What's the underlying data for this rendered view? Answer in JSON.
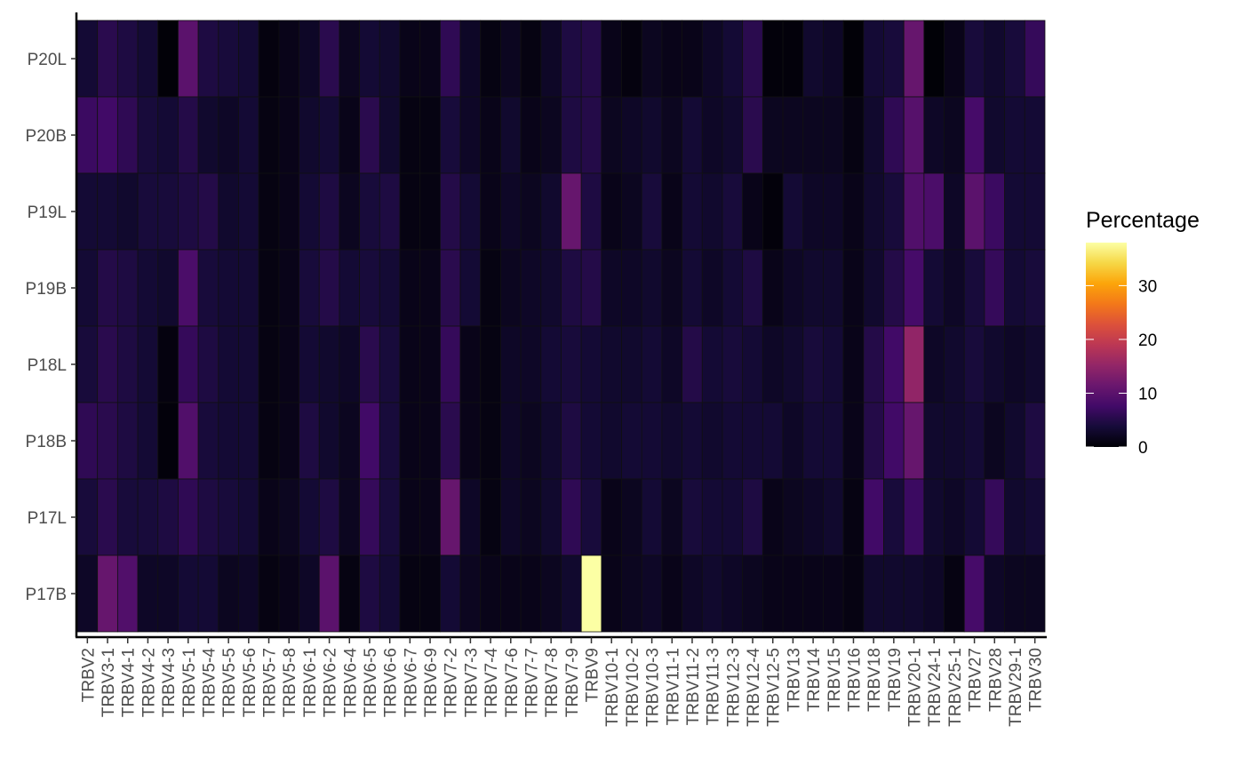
{
  "chart_data": {
    "type": "heatmap",
    "title": "",
    "xlabel": "",
    "ylabel": "",
    "x": [
      "TRBV2",
      "TRBV3-1",
      "TRBV4-1",
      "TRBV4-2",
      "TRBV4-3",
      "TRBV5-1",
      "TRBV5-4",
      "TRBV5-5",
      "TRBV5-6",
      "TRBV5-7",
      "TRBV5-8",
      "TRBV6-1",
      "TRBV6-2",
      "TRBV6-4",
      "TRBV6-5",
      "TRBV6-6",
      "TRBV6-7",
      "TRBV6-9",
      "TRBV7-2",
      "TRBV7-3",
      "TRBV7-4",
      "TRBV7-6",
      "TRBV7-7",
      "TRBV7-8",
      "TRBV7-9",
      "TRBV9",
      "TRBV10-1",
      "TRBV10-2",
      "TRBV10-3",
      "TRBV11-1",
      "TRBV11-2",
      "TRBV11-3",
      "TRBV12-3",
      "TRBV12-4",
      "TRBV12-5",
      "TRBV13",
      "TRBV14",
      "TRBV15",
      "TRBV16",
      "TRBV18",
      "TRBV19",
      "TRBV20-1",
      "TRBV24-1",
      "TRBV25-1",
      "TRBV27",
      "TRBV28",
      "TRBV29-1",
      "TRBV30"
    ],
    "y": [
      "P20L",
      "P20B",
      "P19L",
      "P19B",
      "P18L",
      "P18B",
      "P17L",
      "P17B"
    ],
    "values": [
      [
        3.5,
        5.5,
        4.5,
        3.5,
        0.3,
        10,
        4.5,
        4,
        3.5,
        0.8,
        1.5,
        2.5,
        5.5,
        2,
        3.5,
        3,
        1.5,
        1.5,
        6,
        2.5,
        1,
        2,
        1,
        2.5,
        4.5,
        5,
        1.5,
        0.8,
        2,
        1.5,
        1.5,
        2.5,
        3.5,
        5.5,
        0.5,
        0.5,
        3,
        2.5,
        0.3,
        3.5,
        4,
        11,
        0.2,
        1.5,
        4,
        3,
        4,
        6.5
      ],
      [
        7,
        7.5,
        6,
        4,
        3.5,
        5,
        3,
        2.5,
        3.5,
        1,
        1.5,
        3,
        3.5,
        1.5,
        5.5,
        3,
        1,
        1,
        4,
        2.5,
        1.5,
        3,
        1.5,
        2,
        4.5,
        5,
        2,
        2.5,
        3,
        2,
        3.5,
        2.5,
        3,
        5.5,
        2,
        2,
        2,
        2,
        1,
        3,
        6,
        9.5,
        2.5,
        2,
        8,
        3,
        3.5,
        3.5
      ],
      [
        3.5,
        3.5,
        3,
        4,
        4,
        4.5,
        5,
        3,
        3.5,
        1,
        1.5,
        3.5,
        4.5,
        2,
        4,
        4.5,
        1,
        1,
        5,
        3.5,
        1.5,
        2.5,
        2,
        3,
        11,
        4.5,
        1.5,
        2,
        4,
        1.5,
        3.5,
        3,
        4,
        1.5,
        0.5,
        3.5,
        2.5,
        2.5,
        1.5,
        3,
        4,
        9,
        8.5,
        2.5,
        10,
        7,
        3.5,
        3.5
      ],
      [
        3.5,
        5,
        4.5,
        3.5,
        3,
        8.5,
        4,
        3.5,
        3.5,
        1,
        1.5,
        4,
        5,
        3.5,
        4,
        3.5,
        1.5,
        1.5,
        5.5,
        3.5,
        1,
        2,
        2.5,
        3,
        4.5,
        5,
        2.5,
        2.5,
        3,
        2,
        3.5,
        2.5,
        3.5,
        4.5,
        1.5,
        2.5,
        3,
        3,
        1.5,
        3,
        5,
        8,
        3.5,
        2.5,
        4,
        6.5,
        3.5,
        4
      ],
      [
        4,
        5.5,
        4.5,
        3.5,
        0.8,
        6.5,
        4.5,
        3.5,
        3.5,
        1,
        1.5,
        3.5,
        3,
        2.5,
        5.5,
        4,
        1.5,
        1.5,
        6.5,
        1.5,
        1,
        2.5,
        2.5,
        3.5,
        4,
        3.5,
        3,
        3,
        3.5,
        2.5,
        5,
        3.5,
        4,
        3.5,
        2.5,
        3,
        4,
        3.5,
        1.5,
        5,
        7.5,
        15,
        2.5,
        3,
        4,
        3,
        2.5,
        3
      ],
      [
        6,
        5.5,
        4.5,
        3.5,
        0.5,
        9,
        4,
        3.5,
        3.5,
        1,
        1.5,
        4.5,
        3,
        2,
        7.5,
        4,
        1.5,
        1.5,
        5.5,
        1.5,
        1,
        2.5,
        2,
        3,
        4.5,
        3.5,
        3,
        3.5,
        3.5,
        3,
        3.5,
        3,
        3.5,
        3.5,
        3.5,
        2.5,
        3.5,
        3.5,
        1.5,
        5,
        7.5,
        11,
        3,
        3,
        3.5,
        2,
        3,
        4.5
      ],
      [
        4,
        5.5,
        4,
        4,
        4.5,
        6,
        4.5,
        4,
        3.5,
        1.5,
        2,
        3.5,
        4.5,
        2,
        6.5,
        4,
        1.5,
        1.5,
        11,
        2.5,
        1,
        2.5,
        2,
        3,
        6,
        4,
        1.5,
        2,
        3.5,
        2,
        4,
        3.5,
        3.5,
        4.5,
        1.5,
        2,
        2.5,
        3,
        1,
        7.5,
        4,
        7,
        3,
        2.5,
        3.5,
        6.5,
        3,
        3.5
      ],
      [
        2.5,
        11,
        9,
        2.5,
        2.5,
        3.5,
        3.5,
        2,
        2.5,
        1,
        1.5,
        2.5,
        10,
        1,
        4.5,
        3.5,
        1,
        1,
        3.5,
        2,
        1.5,
        1.5,
        1.5,
        2,
        3,
        38,
        1.5,
        2,
        2.5,
        1.5,
        2.5,
        3,
        2.5,
        2,
        1.5,
        1.5,
        1.5,
        1.5,
        1,
        3,
        3,
        3,
        2.5,
        1,
        8,
        2.5,
        2,
        2
      ]
    ],
    "legend": {
      "title": "Percentage",
      "ticks": [
        0,
        10,
        20,
        30
      ],
      "range": [
        0,
        38
      ],
      "colormap": "inferno",
      "placement": "right"
    },
    "grid": false
  }
}
